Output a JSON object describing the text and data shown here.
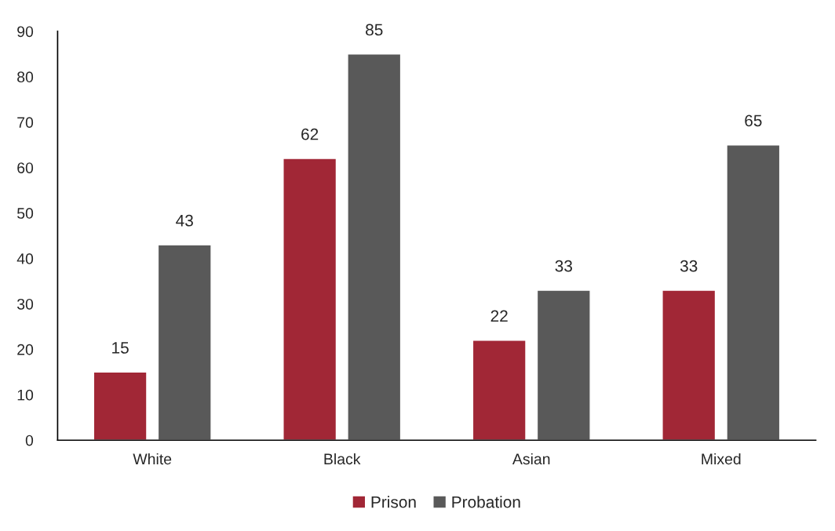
{
  "chart_data": {
    "type": "bar",
    "categories": [
      "White",
      "Black",
      "Asian",
      "Mixed"
    ],
    "series": [
      {
        "name": "Prison",
        "color": "#a12736",
        "values": [
          15,
          62,
          22,
          33
        ]
      },
      {
        "name": "Probation",
        "color": "#595959",
        "values": [
          43,
          85,
          33,
          65
        ]
      }
    ],
    "ylim": [
      0,
      90
    ],
    "yticks": [
      0,
      10,
      20,
      30,
      40,
      50,
      60,
      70,
      80,
      90
    ],
    "data_labels": true,
    "legend": "bottom",
    "grid": false
  }
}
